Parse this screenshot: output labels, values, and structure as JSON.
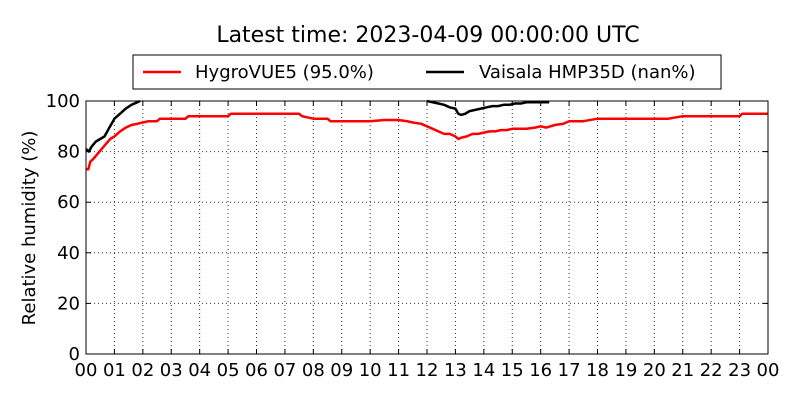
{
  "chart_data": {
    "type": "line",
    "title": "Latest time: 2023-04-09 00:00:00 UTC",
    "xlabel": "",
    "ylabel": "Relative humidity (%)",
    "xlim": [
      0,
      24
    ],
    "ylim": [
      0,
      100
    ],
    "x_ticks": [
      {
        "value": 0,
        "label": "00"
      },
      {
        "value": 1,
        "label": "01"
      },
      {
        "value": 2,
        "label": "02"
      },
      {
        "value": 3,
        "label": "03"
      },
      {
        "value": 4,
        "label": "04"
      },
      {
        "value": 5,
        "label": "05"
      },
      {
        "value": 6,
        "label": "06"
      },
      {
        "value": 7,
        "label": "07"
      },
      {
        "value": 8,
        "label": "08"
      },
      {
        "value": 9,
        "label": "09"
      },
      {
        "value": 10,
        "label": "10"
      },
      {
        "value": 11,
        "label": "11"
      },
      {
        "value": 12,
        "label": "12"
      },
      {
        "value": 13,
        "label": "13"
      },
      {
        "value": 14,
        "label": "14"
      },
      {
        "value": 15,
        "label": "15"
      },
      {
        "value": 16,
        "label": "16"
      },
      {
        "value": 17,
        "label": "17"
      },
      {
        "value": 18,
        "label": "18"
      },
      {
        "value": 19,
        "label": "19"
      },
      {
        "value": 20,
        "label": "20"
      },
      {
        "value": 21,
        "label": "21"
      },
      {
        "value": 22,
        "label": "22"
      },
      {
        "value": 23,
        "label": "23"
      },
      {
        "value": 24,
        "label": "00"
      }
    ],
    "y_ticks": [
      {
        "value": 0,
        "label": "0"
      },
      {
        "value": 20,
        "label": "20"
      },
      {
        "value": 40,
        "label": "40"
      },
      {
        "value": 60,
        "label": "60"
      },
      {
        "value": 80,
        "label": "80"
      },
      {
        "value": 100,
        "label": "100"
      }
    ],
    "grid": true,
    "legend_position": "top",
    "series": [
      {
        "name": "HygroVUE5 (95.0%)",
        "color": "#ff0000",
        "x": [
          0,
          0.08,
          0.15,
          0.25,
          0.4,
          0.55,
          0.7,
          0.85,
          1.0,
          1.2,
          1.4,
          1.6,
          1.8,
          2.0,
          2.2,
          2.5,
          2.6,
          3.0,
          3.5,
          3.6,
          4.0,
          4.5,
          5.0,
          5.1,
          5.5,
          6.0,
          6.5,
          7.0,
          7.5,
          7.6,
          8.0,
          8.5,
          8.6,
          9.0,
          9.5,
          10.0,
          10.5,
          11.0,
          11.3,
          11.5,
          11.8,
          12.0,
          12.2,
          12.4,
          12.6,
          12.8,
          13.0,
          13.1,
          13.2,
          13.4,
          13.6,
          13.8,
          14.0,
          14.2,
          14.4,
          14.6,
          14.8,
          15.0,
          15.2,
          15.5,
          15.8,
          16.0,
          16.2,
          16.5,
          16.8,
          17.0,
          17.5,
          18.0,
          18.5,
          19.0,
          19.5,
          20.0,
          20.5,
          21.0,
          21.5,
          22.0,
          22.5,
          23.0,
          23.1,
          23.5,
          24.0
        ],
        "values": [
          73,
          73,
          76,
          77,
          79,
          81,
          83,
          85,
          86,
          88,
          89.5,
          90.5,
          91,
          91.5,
          92,
          92,
          93,
          93,
          93,
          94,
          94,
          94,
          94,
          95,
          95,
          95,
          95,
          95,
          95,
          94,
          93,
          93,
          92,
          92,
          92,
          92,
          92.5,
          92.5,
          92,
          91.5,
          91,
          90,
          89,
          88,
          87,
          87,
          86,
          85,
          85.5,
          86,
          87,
          87,
          87.5,
          88,
          88,
          88.5,
          88.5,
          89,
          89,
          89,
          89.5,
          90,
          89.5,
          90.5,
          91,
          92,
          92,
          93,
          93,
          93,
          93,
          93,
          93,
          94,
          94,
          94,
          94,
          94,
          95,
          95,
          95
        ]
      },
      {
        "name": "Vaisala HMP35D (nan%)",
        "color": "#000000",
        "x": [
          0,
          0.1,
          0.2,
          0.35,
          0.5,
          0.65,
          0.8,
          0.9,
          1.0,
          1.2,
          1.4,
          1.6,
          1.8,
          1.9,
          null,
          12.0,
          12.2,
          12.4,
          12.6,
          12.8,
          13.0,
          13.1,
          13.2,
          13.35,
          13.5,
          13.7,
          13.9,
          14.1,
          14.3,
          14.5,
          14.7,
          14.9,
          15.1,
          15.3,
          15.5,
          15.7,
          15.9,
          16.1,
          16.3
        ],
        "values": [
          81,
          80,
          82,
          84,
          85,
          86,
          89,
          91,
          93,
          95,
          97,
          98.5,
          99.5,
          100,
          null,
          100,
          99.5,
          99,
          98.5,
          97.5,
          97,
          95,
          94.5,
          95,
          96,
          96.5,
          97,
          97.5,
          98,
          98,
          98.5,
          98.5,
          99,
          99,
          99.5,
          99.5,
          99.5,
          99.5,
          99.5
        ]
      }
    ]
  }
}
